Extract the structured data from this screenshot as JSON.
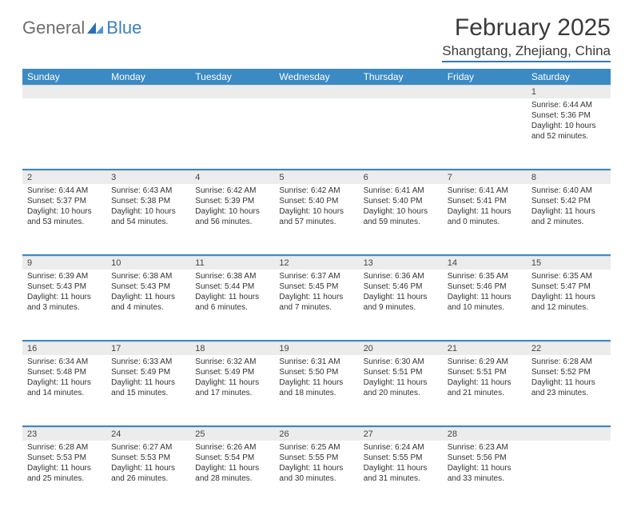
{
  "logo": {
    "general": "General",
    "blue": "Blue"
  },
  "title": "February 2025",
  "location": "Shangtang, Zhejiang, China",
  "colors": {
    "header_bg": "#3b8ac4",
    "header_text": "#ffffff",
    "daynum_bg": "#ececec",
    "rule": "#3178bd",
    "text": "#333333",
    "logo_gray": "#6e6e6e",
    "logo_blue": "#3b7fc4"
  },
  "weekdays": [
    "Sunday",
    "Monday",
    "Tuesday",
    "Wednesday",
    "Thursday",
    "Friday",
    "Saturday"
  ],
  "weeks": [
    [
      null,
      null,
      null,
      null,
      null,
      null,
      {
        "n": "1",
        "sr": "Sunrise: 6:44 AM",
        "ss": "Sunset: 5:36 PM",
        "dl": "Daylight: 10 hours and 52 minutes."
      }
    ],
    [
      {
        "n": "2",
        "sr": "Sunrise: 6:44 AM",
        "ss": "Sunset: 5:37 PM",
        "dl": "Daylight: 10 hours and 53 minutes."
      },
      {
        "n": "3",
        "sr": "Sunrise: 6:43 AM",
        "ss": "Sunset: 5:38 PM",
        "dl": "Daylight: 10 hours and 54 minutes."
      },
      {
        "n": "4",
        "sr": "Sunrise: 6:42 AM",
        "ss": "Sunset: 5:39 PM",
        "dl": "Daylight: 10 hours and 56 minutes."
      },
      {
        "n": "5",
        "sr": "Sunrise: 6:42 AM",
        "ss": "Sunset: 5:40 PM",
        "dl": "Daylight: 10 hours and 57 minutes."
      },
      {
        "n": "6",
        "sr": "Sunrise: 6:41 AM",
        "ss": "Sunset: 5:40 PM",
        "dl": "Daylight: 10 hours and 59 minutes."
      },
      {
        "n": "7",
        "sr": "Sunrise: 6:41 AM",
        "ss": "Sunset: 5:41 PM",
        "dl": "Daylight: 11 hours and 0 minutes."
      },
      {
        "n": "8",
        "sr": "Sunrise: 6:40 AM",
        "ss": "Sunset: 5:42 PM",
        "dl": "Daylight: 11 hours and 2 minutes."
      }
    ],
    [
      {
        "n": "9",
        "sr": "Sunrise: 6:39 AM",
        "ss": "Sunset: 5:43 PM",
        "dl": "Daylight: 11 hours and 3 minutes."
      },
      {
        "n": "10",
        "sr": "Sunrise: 6:38 AM",
        "ss": "Sunset: 5:43 PM",
        "dl": "Daylight: 11 hours and 4 minutes."
      },
      {
        "n": "11",
        "sr": "Sunrise: 6:38 AM",
        "ss": "Sunset: 5:44 PM",
        "dl": "Daylight: 11 hours and 6 minutes."
      },
      {
        "n": "12",
        "sr": "Sunrise: 6:37 AM",
        "ss": "Sunset: 5:45 PM",
        "dl": "Daylight: 11 hours and 7 minutes."
      },
      {
        "n": "13",
        "sr": "Sunrise: 6:36 AM",
        "ss": "Sunset: 5:46 PM",
        "dl": "Daylight: 11 hours and 9 minutes."
      },
      {
        "n": "14",
        "sr": "Sunrise: 6:35 AM",
        "ss": "Sunset: 5:46 PM",
        "dl": "Daylight: 11 hours and 10 minutes."
      },
      {
        "n": "15",
        "sr": "Sunrise: 6:35 AM",
        "ss": "Sunset: 5:47 PM",
        "dl": "Daylight: 11 hours and 12 minutes."
      }
    ],
    [
      {
        "n": "16",
        "sr": "Sunrise: 6:34 AM",
        "ss": "Sunset: 5:48 PM",
        "dl": "Daylight: 11 hours and 14 minutes."
      },
      {
        "n": "17",
        "sr": "Sunrise: 6:33 AM",
        "ss": "Sunset: 5:49 PM",
        "dl": "Daylight: 11 hours and 15 minutes."
      },
      {
        "n": "18",
        "sr": "Sunrise: 6:32 AM",
        "ss": "Sunset: 5:49 PM",
        "dl": "Daylight: 11 hours and 17 minutes."
      },
      {
        "n": "19",
        "sr": "Sunrise: 6:31 AM",
        "ss": "Sunset: 5:50 PM",
        "dl": "Daylight: 11 hours and 18 minutes."
      },
      {
        "n": "20",
        "sr": "Sunrise: 6:30 AM",
        "ss": "Sunset: 5:51 PM",
        "dl": "Daylight: 11 hours and 20 minutes."
      },
      {
        "n": "21",
        "sr": "Sunrise: 6:29 AM",
        "ss": "Sunset: 5:51 PM",
        "dl": "Daylight: 11 hours and 21 minutes."
      },
      {
        "n": "22",
        "sr": "Sunrise: 6:28 AM",
        "ss": "Sunset: 5:52 PM",
        "dl": "Daylight: 11 hours and 23 minutes."
      }
    ],
    [
      {
        "n": "23",
        "sr": "Sunrise: 6:28 AM",
        "ss": "Sunset: 5:53 PM",
        "dl": "Daylight: 11 hours and 25 minutes."
      },
      {
        "n": "24",
        "sr": "Sunrise: 6:27 AM",
        "ss": "Sunset: 5:53 PM",
        "dl": "Daylight: 11 hours and 26 minutes."
      },
      {
        "n": "25",
        "sr": "Sunrise: 6:26 AM",
        "ss": "Sunset: 5:54 PM",
        "dl": "Daylight: 11 hours and 28 minutes."
      },
      {
        "n": "26",
        "sr": "Sunrise: 6:25 AM",
        "ss": "Sunset: 5:55 PM",
        "dl": "Daylight: 11 hours and 30 minutes."
      },
      {
        "n": "27",
        "sr": "Sunrise: 6:24 AM",
        "ss": "Sunset: 5:55 PM",
        "dl": "Daylight: 11 hours and 31 minutes."
      },
      {
        "n": "28",
        "sr": "Sunrise: 6:23 AM",
        "ss": "Sunset: 5:56 PM",
        "dl": "Daylight: 11 hours and 33 minutes."
      },
      null
    ]
  ]
}
